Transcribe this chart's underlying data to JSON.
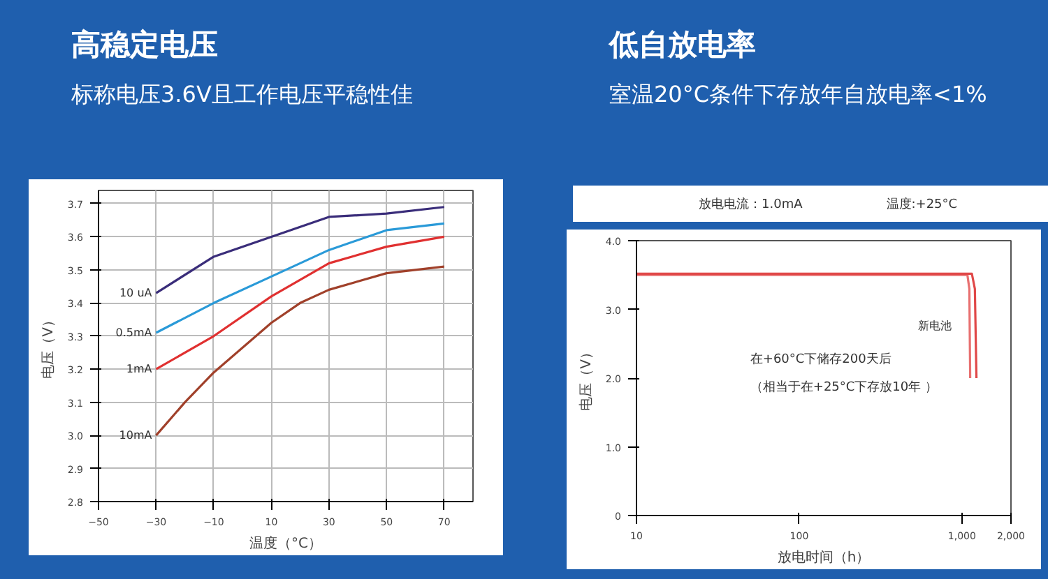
{
  "chart_data": [
    {
      "type": "line",
      "title": "高稳定电压",
      "subtitle": "标称电压3.6V且工作电压平稳性佳",
      "xlabel": "温度（°C）",
      "ylabel": "电压（V）",
      "xlim": [
        -50,
        80
      ],
      "xticks": [
        -50,
        -30,
        -10,
        10,
        30,
        50,
        70
      ],
      "ylim": [
        2.8,
        3.74
      ],
      "yticks": [
        2.8,
        2.9,
        {
          "value": 3.0,
          "label": "3.0"
        },
        3.1,
        3.2,
        3.3,
        3.4,
        3.5,
        3.6,
        3.7
      ],
      "grid": true,
      "series": [
        {
          "name": "10 uA",
          "color": "#3a2d7a",
          "x": [
            -30,
            -10,
            10,
            30,
            50,
            70
          ],
          "values": [
            3.43,
            3.54,
            3.6,
            3.66,
            3.67,
            3.69
          ]
        },
        {
          "name": "0.5mA",
          "color": "#2a9ad8",
          "x": [
            -30,
            -10,
            10,
            30,
            50,
            70
          ],
          "values": [
            3.31,
            3.4,
            3.48,
            3.56,
            3.62,
            3.64
          ]
        },
        {
          "name": "1mA",
          "color": "#e03030",
          "x": [
            -30,
            -10,
            10,
            30,
            50,
            70
          ],
          "values": [
            3.2,
            3.3,
            3.42,
            3.52,
            3.57,
            3.6
          ]
        },
        {
          "name": "10mA",
          "color": "#a0402a",
          "x": [
            -30,
            -20,
            -10,
            10,
            20,
            30,
            50,
            70
          ],
          "values": [
            3.0,
            3.1,
            3.19,
            3.34,
            3.4,
            3.44,
            3.49,
            3.51
          ]
        }
      ]
    },
    {
      "type": "line",
      "title": "低自放电率",
      "subtitle": "室温20°C条件下存放年自放电率<1%",
      "xlabel": "放电时间（h）",
      "ylabel": "电压（V）",
      "log": "x",
      "xlim": [
        10,
        2000
      ],
      "xticks": [
        10,
        100,
        {
          "value": 1000,
          "label": "1,000"
        },
        {
          "value": 2000,
          "label": "2,000"
        }
      ],
      "ylim": [
        0,
        4
      ],
      "yticks": [
        0,
        {
          "value": 1,
          "label": "1.0"
        },
        {
          "value": 2,
          "label": "2.0"
        },
        {
          "value": 3,
          "label": "3.0"
        },
        {
          "value": 4,
          "label": "4.0"
        }
      ],
      "series": [
        {
          "color": "#e87070",
          "x": [
            10,
            1080,
            1110,
            1123
          ],
          "values": [
            3.5,
            3.5,
            3.3,
            2.0
          ]
        },
        {
          "name": "新电池",
          "color": "#e04848",
          "x": [
            10,
            1150,
            1200,
            1227
          ],
          "values": [
            3.52,
            3.52,
            3.3,
            2.0
          ]
        }
      ],
      "annotations": [
        "放电电流：1.0mA",
        "温度:+25°C",
        "在+60°C下储存200天后",
        "（相当于在+25°C下存放10年 ）"
      ]
    }
  ]
}
